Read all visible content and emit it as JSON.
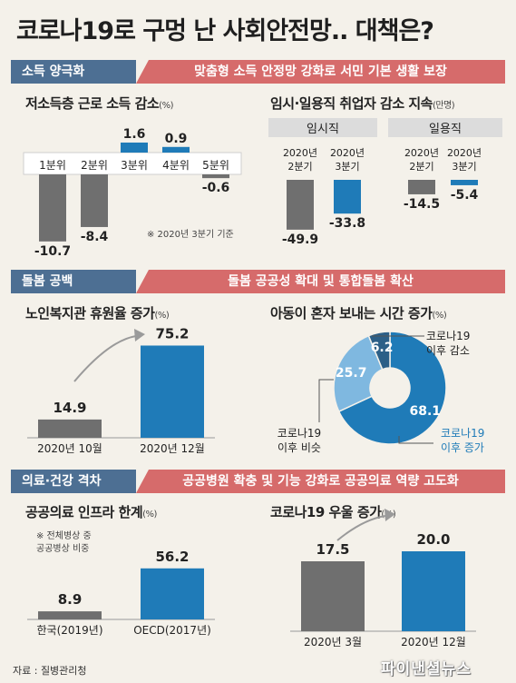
{
  "title": "코로나19로 구멍 난 사회안전망.. 대책은?",
  "colors": {
    "gray": "#6f6f6f",
    "blue": "#1f7bb8",
    "lightblue": "#7fb8e0",
    "tag": "#4d6f93",
    "banner": "#d66b6b"
  },
  "sections": [
    {
      "tag": "소득 양극화",
      "banner": "맞춤형 소득 안정망 강화로 서민 기본 생활 보장"
    },
    {
      "tag": "돌봄 공백",
      "banner": "돌봄 공공성 확대 및 통합돌봄 확산"
    },
    {
      "tag": "의료·건강 격차",
      "banner": "공공병원 확충 및 기능 강화로 공공의료 역량 고도화"
    }
  ],
  "subtitles": {
    "income": "저소득층 근로 소득 감소",
    "income_unit": "(%)",
    "jobs": "임시·일용직 취업자 감소 지속",
    "jobs_unit": "(만명)",
    "elderly": "노인복지관 휴원율 증가",
    "elderly_unit": "(%)",
    "child": "아동이 혼자 보내는 시간 증가",
    "child_unit": "(%)",
    "medical": "공공의료 인프라 한계",
    "medical_unit": "(%)",
    "depression": "코로나19 우울 증가",
    "depression_unit": "(%)"
  },
  "chart_data": [
    {
      "type": "bar",
      "title": "저소득층 근로 소득 감소",
      "unit": "%",
      "categories": [
        "1분위",
        "2분위",
        "3분위",
        "4분위",
        "5분위"
      ],
      "values": [
        -10.7,
        -8.4,
        1.6,
        0.9,
        -0.6
      ],
      "labels": [
        "-10.7",
        "-8.4",
        "1.6",
        "0.9",
        "-0.6"
      ],
      "note": "※ 2020년 3분기 기준"
    },
    {
      "type": "bar",
      "title": "임시·일용직 취업자 감소 지속",
      "unit": "만명",
      "groups": [
        {
          "name": "임시직",
          "categories": [
            "2020년\n2분기",
            "2020년\n3분기"
          ],
          "values": [
            -49.9,
            -33.8
          ],
          "labels": [
            "-49.9",
            "-33.8"
          ]
        },
        {
          "name": "일용직",
          "categories": [
            "2020년\n2분기",
            "2020년\n3분기"
          ],
          "values": [
            -14.5,
            -5.4
          ],
          "labels": [
            "-14.5",
            "-5.4"
          ]
        }
      ]
    },
    {
      "type": "bar",
      "title": "노인복지관 휴원율 증가",
      "unit": "%",
      "categories": [
        "2020년 10월",
        "2020년 12월"
      ],
      "values": [
        14.9,
        75.2
      ],
      "labels": [
        "14.9",
        "75.2"
      ]
    },
    {
      "type": "pie",
      "title": "아동이 혼자 보내는 시간 증가",
      "unit": "%",
      "slices": [
        {
          "label": "코로나19 이후 증가",
          "value": 68.1,
          "text": "68.1"
        },
        {
          "label": "코로나19 이후 비슷",
          "value": 25.7,
          "text": "25.7"
        },
        {
          "label": "코로나19 이후 감소",
          "value": 6.2,
          "text": "6.2"
        }
      ]
    },
    {
      "type": "bar",
      "title": "공공의료 인프라 한계",
      "unit": "%",
      "note": "※ 전체병상 중 공공병상 비중",
      "categories": [
        "한국(2019년)",
        "OECD(2017년)"
      ],
      "values": [
        8.9,
        56.2
      ],
      "labels": [
        "8.9",
        "56.2"
      ]
    },
    {
      "type": "bar",
      "title": "코로나19 우울 증가",
      "unit": "%",
      "categories": [
        "2020년 3월",
        "2020년 12월"
      ],
      "values": [
        17.5,
        20.0
      ],
      "labels": [
        "17.5",
        "20.0"
      ]
    }
  ],
  "pie_callouts": {
    "decrease": [
      "코로나19",
      "이후 감소"
    ],
    "similar": [
      "코로나19",
      "이후 비슷"
    ],
    "increase": [
      "코로나19",
      "이후 증가"
    ]
  },
  "medical_note": [
    "※ 전체병상 중",
    "공공병상 비중"
  ],
  "source": "자료 : 질병관리청",
  "logo": "파이낸셜뉴스"
}
